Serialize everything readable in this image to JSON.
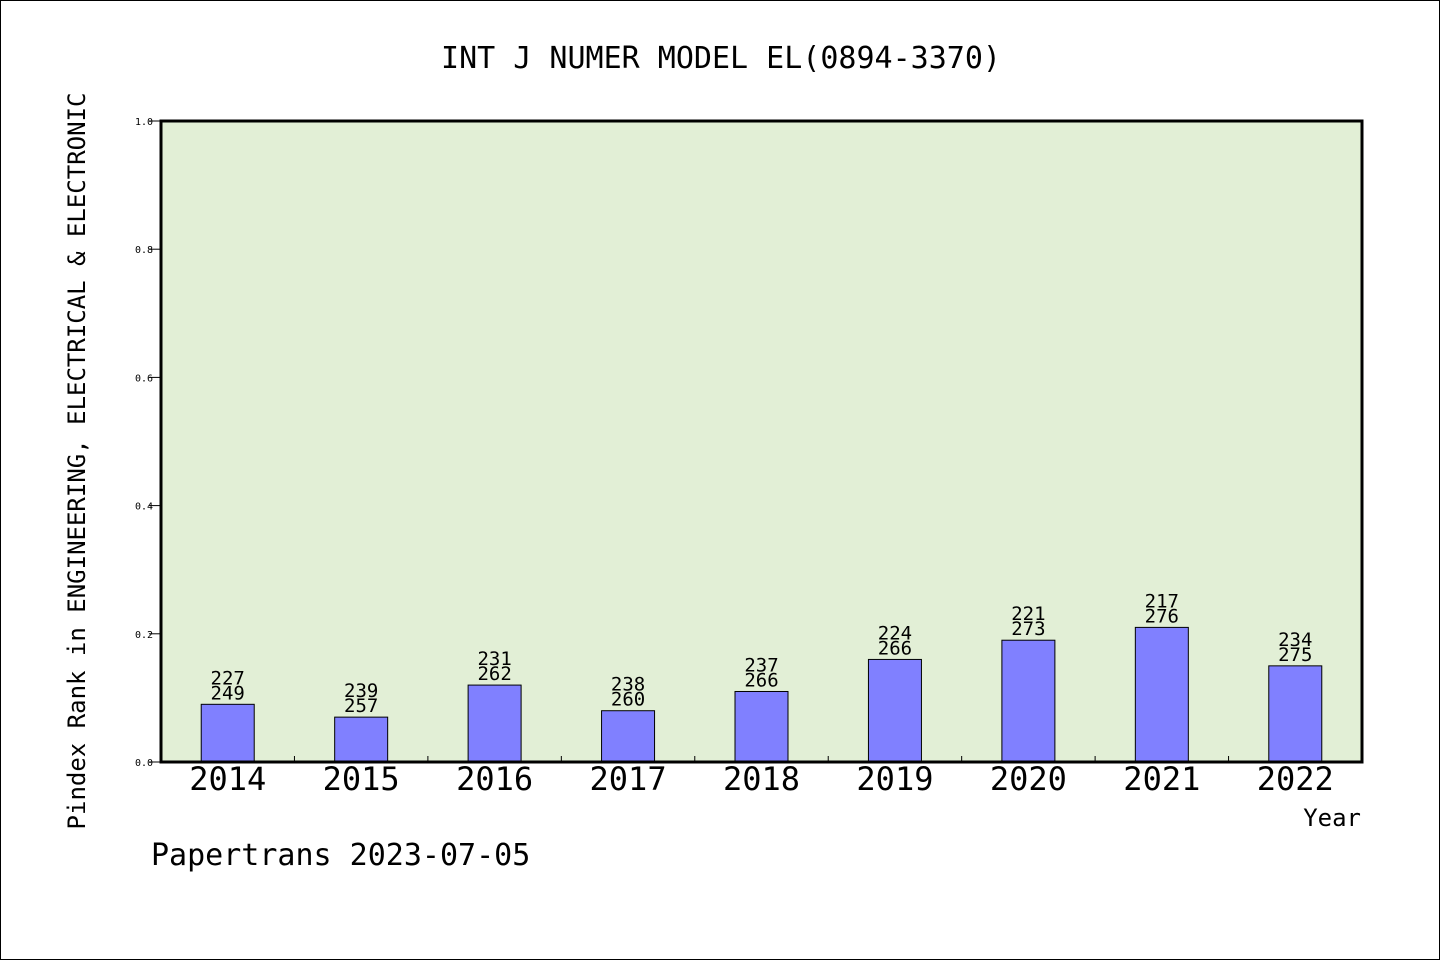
{
  "chart_data": {
    "type": "bar",
    "title": "INT J NUMER MODEL EL(0894-3370)",
    "ylabel": "Pindex Rank in ENGINEERING, ELECTRICAL & ELECTRONIC",
    "xlabel": "Year",
    "ylim": [
      0,
      1.0
    ],
    "yticks": [
      "0.0",
      "0.2",
      "0.4",
      "0.6",
      "0.8",
      "1.0"
    ],
    "categories": [
      "2014",
      "2015",
      "2016",
      "2017",
      "2018",
      "2019",
      "2020",
      "2021",
      "2022"
    ],
    "values": [
      0.09,
      0.07,
      0.12,
      0.08,
      0.11,
      0.16,
      0.19,
      0.21,
      0.15
    ],
    "rank_labels": [
      "227",
      "239",
      "231",
      "238",
      "237",
      "224",
      "221",
      "217",
      "234"
    ],
    "total_labels": [
      "249",
      "257",
      "262",
      "260",
      "266",
      "266",
      "273",
      "276",
      "275"
    ],
    "grid": false,
    "plot_background": "#e2efd6",
    "bar_color": "#8080ff"
  },
  "footer": "Papertrans 2023-07-05"
}
